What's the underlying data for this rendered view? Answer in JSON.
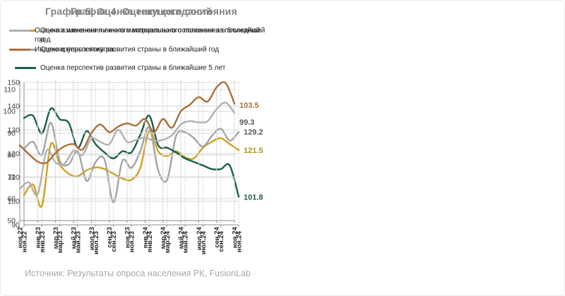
{
  "source_note": "Источник: Результаты опроса населения РК, FusionLab",
  "chart_data": [
    {
      "type": "line",
      "title": "График 4. Оценки ожиданий",
      "x_tick_labels": [
        "ноя.22",
        "янв.23",
        "мар.23",
        "май.23",
        "июл.23",
        "сен.23",
        "ноя.23",
        "янв.24",
        "мар.24",
        "май.24",
        "июл.24",
        "сен.24",
        "ноя.24"
      ],
      "x_frequency": "monthly",
      "ylim": [
        90,
        150
      ],
      "y_ticks": [
        90,
        100,
        110,
        120,
        130,
        140,
        150
      ],
      "grid_vertical_style": "dotted",
      "legend_position": "top-left",
      "series": [
        {
          "name": "Оценка изменения личного материального положения в ближайший год",
          "color": "#CFA21D",
          "end_label": "121.5",
          "end_label_color": "#B8901D",
          "values": [
            102.5,
            107,
            98,
            124,
            115.5,
            111.5,
            110.5,
            113,
            114.2,
            113.5,
            111.5,
            109.5,
            109,
            114,
            129.5,
            121,
            119,
            121,
            118.5,
            118,
            122.5,
            125,
            126.5,
            124,
            121.5
          ]
        },
        {
          "name": "Оценка перспектив развития страны в ближайший год",
          "color": "#A4A4A4",
          "end_label": "129.2",
          "end_label_color": "#595959",
          "values": [
            122,
            125,
            119.5,
            133,
            117,
            115.5,
            121,
            108.5,
            116.5,
            117.5,
            99.5,
            117,
            114,
            121,
            131,
            113,
            109,
            127.5,
            129,
            126.5,
            123,
            127.5,
            130.5,
            125.5,
            129.2
          ]
        },
        {
          "name": "Оценка перспектив развития страны в ближайшие 5 лет",
          "color": "#1B5F4B",
          "end_label": "101.8",
          "end_label_color": "#265C4B",
          "values": [
            135,
            136,
            128.5,
            139,
            134.5,
            133,
            122.5,
            129.5,
            124,
            120.5,
            118,
            121,
            120.5,
            128,
            136,
            123.5,
            122.5,
            120.5,
            118,
            116.5,
            115,
            113.5,
            113.5,
            115,
            101.8
          ]
        }
      ]
    },
    {
      "type": "line",
      "title": "График 5. Оценка текущего состояния",
      "x_tick_labels": [
        "ноя.22",
        "янв.23",
        "мар.23",
        "май.23",
        "июл.23",
        "сен.23",
        "ноя.23",
        "янв.24",
        "мар.24",
        "май.24",
        "июл.24",
        "сен.24",
        "ноя.24"
      ],
      "x_frequency": "monthly",
      "ylim": [
        50,
        110
      ],
      "y_ticks": [
        50,
        60,
        70,
        80,
        90,
        100,
        110
      ],
      "grid_vertical_style": "solid",
      "legend_position": "top-left",
      "series": [
        {
          "name": "Оценка изменения личного материального положения за последний год",
          "color": "#B1B1B1",
          "end_label": "99.3",
          "end_label_color": "#595959",
          "end_label_dy": 13,
          "values": [
            64.5,
            67.5,
            62,
            82,
            76.5,
            76,
            82,
            80,
            87.5,
            86,
            85,
            91.5,
            86,
            87,
            88,
            86.5,
            87,
            89,
            94,
            95.5,
            95,
            95.5,
            101,
            104,
            99.3
          ]
        },
        {
          "name": "Индекс крупных покупок",
          "color": "#A9713C",
          "end_label": "103.5",
          "end_label_color": "#A9713C",
          "end_label_dy": 2,
          "values": [
            84.5,
            80.5,
            77,
            76.5,
            81,
            84,
            85,
            82.5,
            90,
            94,
            90.5,
            93,
            94.5,
            93.5,
            96.5,
            90.5,
            96.5,
            92.5,
            100,
            103,
            106.5,
            104.5,
            111,
            113,
            103.5
          ]
        }
      ]
    }
  ]
}
